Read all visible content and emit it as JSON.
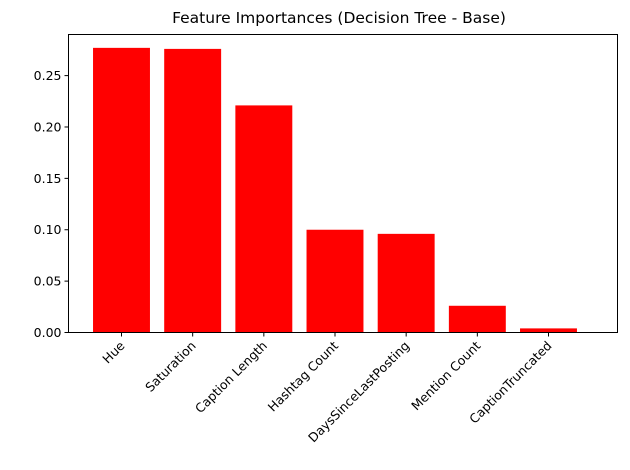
{
  "chart_data": {
    "type": "bar",
    "title": "Feature Importances (Decision Tree - Base)",
    "xlabel": "",
    "ylabel": "",
    "categories": [
      "Hue",
      "Saturation",
      "Caption Length",
      "Hashtag Count",
      "DaysSinceLastPosting",
      "Mention Count",
      "CaptionTruncated"
    ],
    "values": [
      0.277,
      0.276,
      0.221,
      0.1,
      0.096,
      0.026,
      0.004
    ],
    "ylim": [
      0,
      0.29
    ],
    "yticks": [
      "0.00",
      "0.05",
      "0.10",
      "0.15",
      "0.20",
      "0.25"
    ],
    "bar_color": "#ff0000",
    "grid": false,
    "legend": "none"
  }
}
